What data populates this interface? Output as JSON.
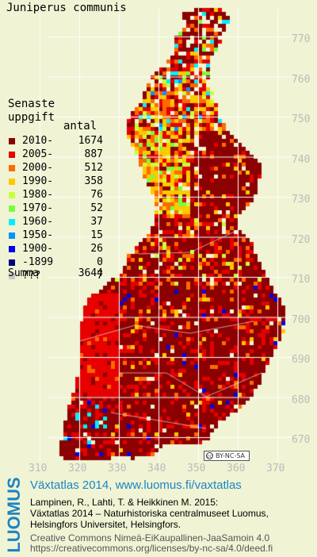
{
  "species": "Juniperus communis",
  "legend": {
    "title_lines": [
      "Senaste",
      "uppgift"
    ],
    "count_header": "antal",
    "rows": [
      {
        "label": "2010-",
        "count": "1674",
        "color": "#8b0000"
      },
      {
        "label": "2005-",
        "count": "887",
        "color": "#e60000"
      },
      {
        "label": "2000-",
        "count": "512",
        "color": "#ff6a00"
      },
      {
        "label": "1990-",
        "count": "358",
        "color": "#ffc800"
      },
      {
        "label": "1980-",
        "count": "76",
        "color": "#c8ff3c"
      },
      {
        "label": "1970-",
        "count": "52",
        "color": "#78ff3c"
      },
      {
        "label": "1960-",
        "count": "37",
        "color": "#00f0ff"
      },
      {
        "label": "1950-",
        "count": "15",
        "color": "#0096ff"
      },
      {
        "label": "1900-",
        "count": "26",
        "color": "#0000e6"
      },
      {
        "label": "-1899",
        "count": "0",
        "color": "#000080"
      },
      {
        "label": "???",
        "count": "7",
        "color": "#c8c8c8"
      }
    ],
    "summa_label": "Summa",
    "summa_count": "3644"
  },
  "axes": {
    "y_ticks": [
      "770",
      "760",
      "750",
      "740",
      "730",
      "720",
      "710",
      "700",
      "690",
      "680",
      "670"
    ],
    "x_ticks": [
      "310",
      "320",
      "330",
      "340",
      "350",
      "360",
      "370"
    ]
  },
  "colors": {
    "background": "#f0f4d4",
    "tick_text": "#bbbbbb",
    "brand_blue": "#1d84c4",
    "grid_line": "#ffffff"
  },
  "license_badge": "BY-NC-SA",
  "brand_logo": "LUOMUS",
  "atlas_title": "Växtatlas 2014, www.luomus.fi/vaxtatlas",
  "citation_lines": [
    "Lampinen, R., Lahti, T. & Heikkinen M. 2015:",
    "Växtatlas 2014 – Naturhistoriska centralmuseet Luomus,",
    "Helsingfors Universitet, Helsingfors."
  ],
  "license_lines": [
    "Creative Commons Nimeä-EiKaupallinen-JaaSamoin 4.0",
    "https://creativecommons.org/licenses/by-nc-sa/4.0/deed.fi"
  ]
}
